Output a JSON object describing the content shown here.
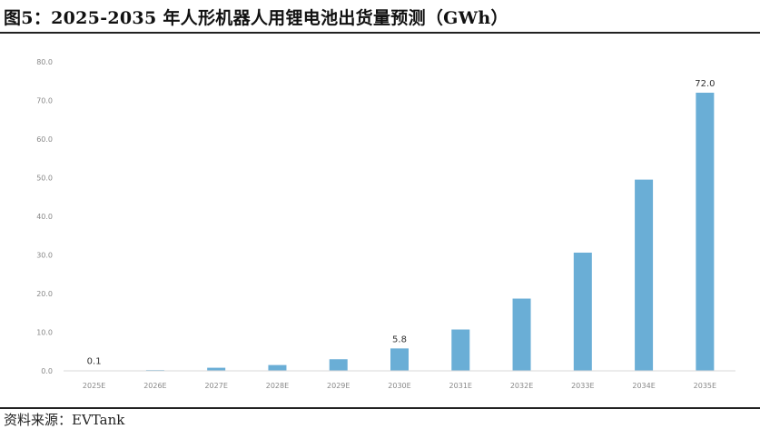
{
  "header": {
    "title": "图5：2025-2035 年人形机器人用锂电池出货量预测（GWh）"
  },
  "footer": {
    "source": "资料来源：EVTank"
  },
  "chart_data": {
    "type": "bar",
    "title": "",
    "xlabel": "",
    "ylabel": "",
    "categories": [
      "2025E",
      "2026E",
      "2027E",
      "2028E",
      "2029E",
      "2030E",
      "2031E",
      "2032E",
      "2033E",
      "2034E",
      "2035E"
    ],
    "values": [
      0.1,
      0.2,
      0.8,
      1.5,
      3.0,
      5.8,
      10.7,
      18.7,
      30.6,
      49.5,
      72.0
    ],
    "data_labels": {
      "0": "0.1",
      "5": "5.8",
      "10": "72.0"
    },
    "ylim": [
      0,
      80
    ],
    "yticks": [
      0,
      10,
      20,
      30,
      40,
      50,
      60,
      70,
      80
    ],
    "ytick_labels": [
      "0.0",
      "10.0",
      "20.0",
      "30.0",
      "40.0",
      "50.0",
      "60.0",
      "70.0",
      "80.0"
    ],
    "bar_color": "#6aaed6",
    "grid": false,
    "legend": "none"
  }
}
